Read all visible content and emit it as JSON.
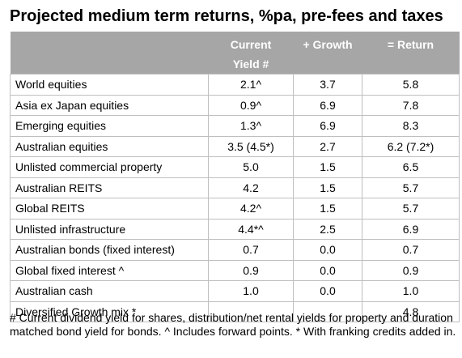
{
  "title": "Projected medium term returns, %pa, pre-fees and taxes",
  "headers": {
    "yield_line1": "Current",
    "yield_line2": "Yield #",
    "growth": "+ Growth",
    "return": "= Return"
  },
  "rows": [
    {
      "asset": "World equities",
      "yield": "2.1^",
      "growth": "3.7",
      "return": "5.8"
    },
    {
      "asset": "Asia ex Japan equities",
      "yield": "0.9^",
      "growth": "6.9",
      "return": "7.8"
    },
    {
      "asset": "Emerging equities",
      "yield": "1.3^",
      "growth": "6.9",
      "return": "8.3"
    },
    {
      "asset": "Australian equities",
      "yield": "3.5 (4.5*)",
      "growth": "2.7",
      "return": "6.2 (7.2*)"
    },
    {
      "asset": "Unlisted commercial property",
      "yield": "5.0",
      "growth": "1.5",
      "return": "6.5"
    },
    {
      "asset": "Australian REITS",
      "yield": "4.2",
      "growth": "1.5",
      "return": "5.7"
    },
    {
      "asset": "Global REITS",
      "yield": "4.2^",
      "growth": "1.5",
      "return": "5.7"
    },
    {
      "asset": "Unlisted infrastructure",
      "yield": "4.4*^",
      "growth": "2.5",
      "return": "6.9"
    },
    {
      "asset": "Australian bonds (fixed interest)",
      "yield": "0.7",
      "growth": "0.0",
      "return": "0.7"
    },
    {
      "asset": "Global fixed interest ^",
      "yield": "0.9",
      "growth": "0.0",
      "return": "0.9"
    },
    {
      "asset": "Australian cash",
      "yield": "1.0",
      "growth": "0.0",
      "return": "1.0"
    },
    {
      "asset": "Diversified Growth mix *",
      "yield": "",
      "growth": "",
      "return": "4.8"
    }
  ],
  "footnote": "# Current dividend yield for shares, distribution/net rental yields for property and duration matched bond yield for bonds. ^ Includes forward points. * With franking credits added in."
}
